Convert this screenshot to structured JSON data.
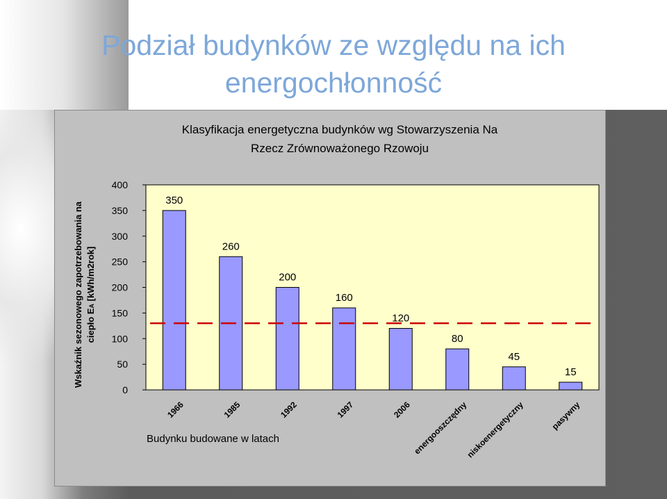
{
  "page": {
    "title": "Podział budynków ze względu na ich energochłonność"
  },
  "colors": {
    "title": "#7da7d9",
    "panel": "#c0c0c0",
    "plot_area": "#ffffcc",
    "bar": "#9999ff",
    "reference_line": "#cc0000"
  },
  "chart_data": {
    "type": "bar",
    "title": "Klasyfikacja energetyczna budynków wg Stowarzyszenia Na Rzecz Zrównoważonego Rzowoju",
    "title_lines": [
      "Klasyfikacja energetyczna budynków wg Stowarzyszenia Na",
      "Rzecz Zrównoważonego Rzowoju"
    ],
    "ylabel_lines": [
      "Wskaźnik sezonowego zapotrzebowania na",
      "ciepło E",
      "A",
      " [kWh/m2rok]"
    ],
    "xlabel": "Budynku budowane w latach",
    "categories": [
      "1966",
      "1985",
      "1992",
      "1997",
      "2006",
      "energooszczędny",
      "niskoenergetyczny",
      "pasywny"
    ],
    "values": [
      350,
      260,
      200,
      160,
      120,
      80,
      45,
      15
    ],
    "data_labels": [
      "350",
      "260",
      "200",
      "160",
      "120",
      "80",
      "45",
      "15"
    ],
    "yticks": [
      "0",
      "50",
      "100",
      "150",
      "200",
      "250",
      "300",
      "350",
      "400"
    ],
    "ylim": [
      0,
      400
    ],
    "reference_line": 130,
    "grid": false,
    "legend": "none"
  }
}
